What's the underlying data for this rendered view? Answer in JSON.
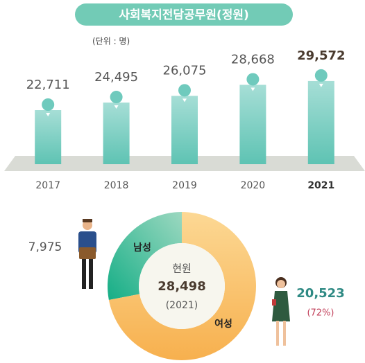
{
  "chart_data": [
    {
      "type": "bar",
      "title": "사회복지전담공무원(정원)",
      "unit_label": "(단위 : 명)",
      "categories": [
        "2017",
        "2018",
        "2019",
        "2020",
        "2021"
      ],
      "values": [
        22711,
        24495,
        26075,
        28668,
        29572
      ],
      "value_labels": [
        "22,711",
        "24,495",
        "26,075",
        "28,668",
        "29,572"
      ],
      "ylim": [
        10000,
        32000
      ],
      "color": "#6fcabd",
      "highlight_index": 4
    },
    {
      "type": "pie",
      "center_label": "현원",
      "total": 28498,
      "total_label": "28,498",
      "year_label": "(2021)",
      "categories": [
        "남성",
        "여성"
      ],
      "values": [
        7975,
        20523
      ],
      "value_labels": [
        "7,975",
        "20,523"
      ],
      "share_label": "(72%)",
      "colors": [
        "#2bb58f",
        "#f9c46e"
      ]
    }
  ]
}
